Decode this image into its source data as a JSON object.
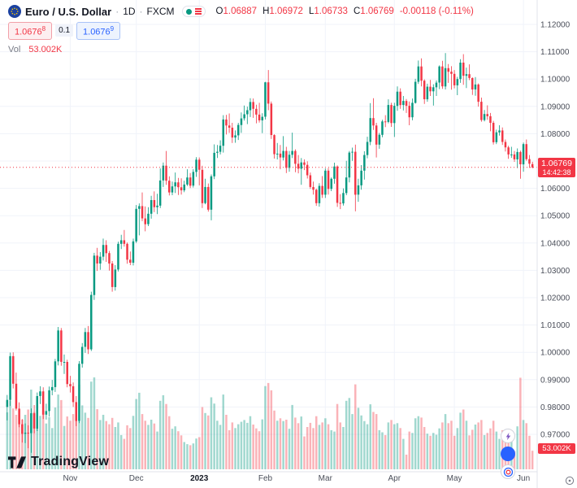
{
  "header": {
    "symbol": "Euro / U.S. Dollar",
    "dot": "·",
    "interval": "1D",
    "exchange": "FXCM",
    "o_label": "O",
    "o_value": "1.06887",
    "h_label": "H",
    "h_value": "1.06972",
    "l_label": "L",
    "l_value": "1.06733",
    "c_label": "C",
    "c_value": "1.06769",
    "change": "-0.00118 (-0.11%)",
    "sell_main": "1.0676",
    "sell_sup": "8",
    "spread": "0.1",
    "buy_main": "1.0676",
    "buy_sup": "9",
    "vol_label": "Vol",
    "vol_value": "53.002K"
  },
  "axis": {
    "price_tag_value": "1.06769",
    "price_tag_countdown": "14:42:38",
    "volume_tag": "53.002K"
  },
  "watermark": {
    "text": "TradingView"
  },
  "chart_data": {
    "type": "candlestick",
    "title": "Euro / U.S. Dollar · 1D · FXCM",
    "symbol": "EUR/USD",
    "interval": "1D",
    "exchange": "FXCM",
    "legend_position": "top-left",
    "grid": true,
    "y_axis": {
      "top": 1.12,
      "bottom": 0.97
    },
    "y_ticks": [
      "1.12000",
      "1.11000",
      "1.10000",
      "1.09000",
      "1.08000",
      "1.07000",
      "1.06000",
      "1.05000",
      "1.04000",
      "1.03000",
      "1.02000",
      "1.01000",
      "1.00000",
      "0.99000",
      "0.98000",
      "0.97000"
    ],
    "x_labels": [
      {
        "label": "Nov",
        "index": 21
      },
      {
        "label": "Dec",
        "index": 43
      },
      {
        "label": "2023",
        "index": 64,
        "bold": true
      },
      {
        "label": "Feb",
        "index": 86
      },
      {
        "label": "Mar",
        "index": 106
      },
      {
        "label": "Apr",
        "index": 129
      },
      {
        "label": "May",
        "index": 149
      },
      {
        "label": "Jun",
        "index": 172
      }
    ],
    "colors": {
      "up": "#089981",
      "down": "#f23645",
      "vol_up": "rgba(8,153,129,0.38)",
      "vol_down": "rgba(242,54,69,0.38)",
      "grid": "#f0f3fa",
      "axis_text": "#4a4e59",
      "last_price": "#f23645",
      "buy": "#2962ff"
    },
    "last": {
      "open": 1.06887,
      "high": 1.06972,
      "low": 1.06733,
      "close": 1.06769,
      "change": -0.00118,
      "change_pct": -0.11,
      "volume_text": "53.002K",
      "countdown": "14:42:38"
    },
    "candles": [
      [
        0.98,
        0.9844,
        0.9751,
        0.9826,
        163
      ],
      [
        0.9826,
        0.9999,
        0.9804,
        0.9986,
        197
      ],
      [
        0.9986,
        1.0,
        0.9868,
        0.9885,
        174
      ],
      [
        0.9885,
        0.9926,
        0.9787,
        0.9794,
        156
      ],
      [
        0.9794,
        0.9817,
        0.9726,
        0.9737,
        168
      ],
      [
        0.9737,
        0.9756,
        0.967,
        0.9702,
        142
      ],
      [
        0.9702,
        0.974,
        0.9668,
        0.9706,
        156
      ],
      [
        0.9706,
        0.9733,
        0.9649,
        0.9704,
        171
      ],
      [
        0.9704,
        0.9795,
        0.9632,
        0.9777,
        228
      ],
      [
        0.9777,
        0.9807,
        0.9704,
        0.9721,
        164
      ],
      [
        0.9721,
        0.9853,
        0.9712,
        0.984,
        187
      ],
      [
        0.984,
        0.9876,
        0.9811,
        0.9857,
        153
      ],
      [
        0.9857,
        0.9872,
        0.9756,
        0.9772,
        169
      ],
      [
        0.9772,
        0.9812,
        0.9754,
        0.9785,
        131
      ],
      [
        0.9785,
        0.9875,
        0.9765,
        0.9861,
        149
      ],
      [
        0.9861,
        0.9899,
        0.9843,
        0.9873,
        118
      ],
      [
        0.9873,
        0.9976,
        0.9855,
        0.9967,
        177
      ],
      [
        0.9967,
        1.0093,
        0.9952,
        1.008,
        214
      ],
      [
        1.008,
        1.0089,
        0.9951,
        0.9965,
        198
      ],
      [
        0.9965,
        0.9992,
        0.9921,
        0.9965,
        124
      ],
      [
        0.9965,
        0.9973,
        0.9872,
        0.9884,
        151
      ],
      [
        0.9884,
        0.9914,
        0.9853,
        0.9876,
        139
      ],
      [
        0.9876,
        0.989,
        0.98,
        0.9818,
        158
      ],
      [
        0.9818,
        0.984,
        0.973,
        0.9749,
        176
      ],
      [
        0.9749,
        0.9968,
        0.9741,
        0.9958,
        242
      ],
      [
        0.9958,
        1.0034,
        0.9944,
        1.002,
        183
      ],
      [
        1.002,
        1.0089,
        0.9998,
        1.0074,
        162
      ],
      [
        1.0074,
        1.0096,
        0.9994,
        1.0011,
        147
      ],
      [
        1.0011,
        1.0222,
        1.0005,
        1.021,
        251
      ],
      [
        1.021,
        1.0364,
        1.0192,
        1.0354,
        263
      ],
      [
        1.0354,
        1.0382,
        1.0298,
        1.0325,
        172
      ],
      [
        1.0325,
        1.0367,
        1.0302,
        1.035,
        141
      ],
      [
        1.035,
        1.0416,
        1.0336,
        1.0393,
        156
      ],
      [
        1.0393,
        1.041,
        1.0331,
        1.0363,
        138
      ],
      [
        1.0363,
        1.0371,
        1.0299,
        1.0325,
        129
      ],
      [
        1.0325,
        1.0334,
        1.0222,
        1.0239,
        147
      ],
      [
        1.0239,
        1.0319,
        1.0226,
        1.0303,
        121
      ],
      [
        1.0303,
        1.0405,
        1.0296,
        1.0397,
        134
      ],
      [
        1.0397,
        1.043,
        1.0378,
        1.041,
        98
      ],
      [
        1.041,
        1.0448,
        1.0387,
        1.0397,
        87
      ],
      [
        1.0397,
        1.0402,
        1.0324,
        1.0339,
        126
      ],
      [
        1.0339,
        1.0369,
        1.0319,
        1.0328,
        118
      ],
      [
        1.0328,
        1.0416,
        1.0318,
        1.0406,
        153
      ],
      [
        1.0406,
        1.0539,
        1.04,
        1.0525,
        201
      ],
      [
        1.0525,
        1.0545,
        1.0428,
        1.0535,
        219
      ],
      [
        1.0535,
        1.0585,
        1.048,
        1.049,
        158
      ],
      [
        1.049,
        1.0534,
        1.0443,
        1.0469,
        139
      ],
      [
        1.0469,
        1.0531,
        1.0462,
        1.0507,
        127
      ],
      [
        1.0507,
        1.0573,
        1.0489,
        1.0557,
        142
      ],
      [
        1.0557,
        1.0589,
        1.0513,
        1.0531,
        131
      ],
      [
        1.0531,
        1.058,
        1.0506,
        1.0537,
        108
      ],
      [
        1.0537,
        1.0673,
        1.0528,
        1.0629,
        196
      ],
      [
        1.0629,
        1.0695,
        1.0605,
        1.0683,
        212
      ],
      [
        1.0683,
        1.0737,
        1.0613,
        1.0628,
        187
      ],
      [
        1.0628,
        1.0644,
        1.0574,
        1.0585,
        152
      ],
      [
        1.0585,
        1.0625,
        1.0575,
        1.0607,
        116
      ],
      [
        1.0607,
        1.0658,
        1.0583,
        1.0622,
        123
      ],
      [
        1.0622,
        1.0638,
        1.0576,
        1.0604,
        109
      ],
      [
        1.0604,
        1.0637,
        1.0577,
        1.0593,
        97
      ],
      [
        1.0593,
        1.0628,
        1.0586,
        1.0614,
        78
      ],
      [
        1.0614,
        1.067,
        1.0609,
        1.064,
        72
      ],
      [
        1.064,
        1.0656,
        1.0601,
        1.061,
        69
      ],
      [
        1.061,
        1.067,
        1.0603,
        1.066,
        74
      ],
      [
        1.066,
        1.0714,
        1.0642,
        1.0705,
        88
      ],
      [
        1.0705,
        1.0713,
        1.0611,
        1.0668,
        92
      ],
      [
        1.0668,
        1.0683,
        1.0528,
        1.0546,
        178
      ],
      [
        1.0546,
        1.0635,
        1.0542,
        1.0605,
        161
      ],
      [
        1.0605,
        1.0618,
        1.0515,
        1.0522,
        154
      ],
      [
        1.0522,
        1.0651,
        1.0483,
        1.0644,
        206
      ],
      [
        1.0644,
        1.0761,
        1.0634,
        1.073,
        188
      ],
      [
        1.073,
        1.0759,
        1.0711,
        1.0734,
        139
      ],
      [
        1.0734,
        1.0776,
        1.0724,
        1.0756,
        127
      ],
      [
        1.0756,
        1.0868,
        1.0731,
        1.0852,
        214
      ],
      [
        1.0852,
        1.0869,
        1.0797,
        1.083,
        156
      ],
      [
        1.083,
        1.0874,
        1.0803,
        1.0822,
        112
      ],
      [
        1.0822,
        1.084,
        1.0766,
        1.0786,
        134
      ],
      [
        1.0786,
        1.0812,
        1.0767,
        1.0794,
        118
      ],
      [
        1.0794,
        1.084,
        1.0777,
        1.0832,
        129
      ],
      [
        1.0832,
        1.0878,
        1.0803,
        1.0856,
        136
      ],
      [
        1.0856,
        1.0903,
        1.0848,
        1.0871,
        141
      ],
      [
        1.0871,
        1.0899,
        1.0835,
        1.0886,
        133
      ],
      [
        1.0886,
        1.093,
        1.0861,
        1.0916,
        152
      ],
      [
        1.0916,
        1.0929,
        1.0858,
        1.0891,
        128
      ],
      [
        1.0891,
        1.0906,
        1.0838,
        1.087,
        117
      ],
      [
        1.087,
        1.0913,
        1.0841,
        1.0849,
        109
      ],
      [
        1.0849,
        1.0875,
        1.0802,
        1.0862,
        143
      ],
      [
        1.0862,
        1.099,
        1.0852,
        1.0988,
        238
      ],
      [
        1.0988,
        1.1033,
        1.0886,
        1.091,
        247
      ],
      [
        1.091,
        1.0918,
        1.0781,
        1.0795,
        226
      ],
      [
        1.0795,
        1.0798,
        1.0709,
        1.0725,
        168
      ],
      [
        1.0725,
        1.0766,
        1.0706,
        1.0727,
        139
      ],
      [
        1.0727,
        1.0759,
        1.067,
        1.0713,
        146
      ],
      [
        1.0713,
        1.0791,
        1.0702,
        1.0737,
        138
      ],
      [
        1.0737,
        1.0752,
        1.0656,
        1.0675,
        142
      ],
      [
        1.0675,
        1.0737,
        1.0661,
        1.0723,
        116
      ],
      [
        1.0723,
        1.0804,
        1.0711,
        1.0737,
        184
      ],
      [
        1.0737,
        1.0743,
        1.0659,
        1.069,
        148
      ],
      [
        1.069,
        1.0722,
        1.0655,
        1.0672,
        132
      ],
      [
        1.0672,
        1.0711,
        1.0613,
        1.0695,
        151
      ],
      [
        1.0695,
        1.0706,
        1.0667,
        1.0686,
        94
      ],
      [
        1.0686,
        1.0699,
        1.0636,
        1.0648,
        121
      ],
      [
        1.0648,
        1.0658,
        1.0598,
        1.0605,
        133
      ],
      [
        1.0605,
        1.0625,
        1.0577,
        1.0595,
        118
      ],
      [
        1.0595,
        1.0599,
        1.0536,
        1.0546,
        152
      ],
      [
        1.0546,
        1.0619,
        1.0533,
        1.0609,
        127
      ],
      [
        1.0609,
        1.0645,
        1.0565,
        1.0577,
        134
      ],
      [
        1.0577,
        1.0673,
        1.0565,
        1.0665,
        146
      ],
      [
        1.0665,
        1.0674,
        1.0577,
        1.0598,
        129
      ],
      [
        1.0598,
        1.064,
        1.059,
        1.0635,
        112
      ],
      [
        1.0635,
        1.0694,
        1.0617,
        1.068,
        108
      ],
      [
        1.068,
        1.0684,
        1.0532,
        1.0547,
        187
      ],
      [
        1.0547,
        1.0579,
        1.0524,
        1.0545,
        134
      ],
      [
        1.0545,
        1.06,
        1.0537,
        1.0583,
        121
      ],
      [
        1.0583,
        1.0701,
        1.0575,
        1.064,
        196
      ],
      [
        1.064,
        1.0737,
        1.0622,
        1.0731,
        204
      ],
      [
        1.0731,
        1.0749,
        1.0701,
        1.0734,
        158
      ],
      [
        1.0734,
        1.076,
        1.0516,
        1.0577,
        243
      ],
      [
        1.0577,
        1.0635,
        1.0551,
        1.0611,
        176
      ],
      [
        1.0611,
        1.0685,
        1.0595,
        1.0665,
        154
      ],
      [
        1.0665,
        1.0736,
        1.0632,
        1.0722,
        138
      ],
      [
        1.0722,
        1.0789,
        1.071,
        1.077,
        129
      ],
      [
        1.077,
        1.0912,
        1.0758,
        1.0857,
        186
      ],
      [
        1.0857,
        1.093,
        1.0814,
        1.083,
        164
      ],
      [
        1.083,
        1.084,
        1.0713,
        1.076,
        158
      ],
      [
        1.076,
        1.0803,
        1.0745,
        1.0796,
        112
      ],
      [
        1.0796,
        1.0851,
        1.0787,
        1.0845,
        106
      ],
      [
        1.0845,
        1.0868,
        1.0824,
        1.0843,
        98
      ],
      [
        1.0843,
        1.0926,
        1.0838,
        1.0905,
        134
      ],
      [
        1.0905,
        1.0913,
        1.0825,
        1.0839,
        141
      ],
      [
        1.0839,
        1.0913,
        1.0788,
        1.0902,
        129
      ],
      [
        1.0902,
        1.0973,
        1.0884,
        1.0954,
        132
      ],
      [
        1.0954,
        1.0966,
        1.0891,
        1.0905,
        118
      ],
      [
        1.0905,
        1.0938,
        1.0885,
        1.092,
        87
      ],
      [
        1.092,
        1.0927,
        1.0876,
        1.0902,
        42
      ],
      [
        1.0902,
        1.0918,
        1.0831,
        1.086,
        108
      ],
      [
        1.086,
        1.0929,
        1.0849,
        1.0913,
        104
      ],
      [
        1.0913,
        1.1001,
        1.091,
        1.099,
        146
      ],
      [
        1.099,
        1.1068,
        1.0982,
        1.1046,
        152
      ],
      [
        1.1046,
        1.1076,
        1.0973,
        1.0994,
        148
      ],
      [
        1.0994,
        1.0999,
        1.0909,
        1.0926,
        121
      ],
      [
        1.0926,
        1.0983,
        1.0917,
        1.0972,
        102
      ],
      [
        1.0972,
        1.0997,
        1.0938,
        1.0955,
        96
      ],
      [
        1.0955,
        1.0981,
        1.0903,
        1.097,
        104
      ],
      [
        1.097,
        1.0995,
        1.0938,
        1.0987,
        99
      ],
      [
        1.0987,
        1.105,
        1.0963,
        1.1046,
        117
      ],
      [
        1.1046,
        1.1067,
        1.0964,
        1.0973,
        134
      ],
      [
        1.0973,
        1.1095,
        1.0962,
        1.104,
        158
      ],
      [
        1.104,
        1.1055,
        1.0986,
        1.1027,
        132
      ],
      [
        1.1027,
        1.1047,
        1.0961,
        1.1019,
        139
      ],
      [
        1.1019,
        1.1033,
        1.0966,
        1.0977,
        96
      ],
      [
        1.0977,
        1.1008,
        1.0941,
        1.1,
        118
      ],
      [
        1.1,
        1.1073,
        1.0986,
        1.106,
        162
      ],
      [
        1.106,
        1.1091,
        1.0979,
        1.1012,
        171
      ],
      [
        1.1012,
        1.1042,
        1.0967,
        1.1018,
        139
      ],
      [
        1.1018,
        1.1054,
        1.0996,
        1.1004,
        97
      ],
      [
        1.1004,
        1.1006,
        1.0942,
        1.0962,
        113
      ],
      [
        1.0962,
        1.1007,
        1.0939,
        1.098,
        128
      ],
      [
        1.098,
        1.0984,
        1.0899,
        1.0917,
        134
      ],
      [
        1.0917,
        1.0932,
        1.0844,
        1.085,
        141
      ],
      [
        1.085,
        1.0887,
        1.0845,
        1.0872,
        98
      ],
      [
        1.0872,
        1.0904,
        1.0851,
        1.0864,
        104
      ],
      [
        1.0864,
        1.0876,
        1.0809,
        1.084,
        117
      ],
      [
        1.084,
        1.0847,
        1.076,
        1.0769,
        139
      ],
      [
        1.0769,
        1.0815,
        1.0762,
        1.0805,
        108
      ],
      [
        1.0805,
        1.0831,
        1.0793,
        1.0812,
        87
      ],
      [
        1.0812,
        1.0823,
        1.0759,
        1.077,
        112
      ],
      [
        1.077,
        1.0779,
        1.0735,
        1.075,
        109
      ],
      [
        1.075,
        1.0756,
        1.0708,
        1.0724,
        116
      ],
      [
        1.0724,
        1.0752,
        1.0712,
        1.0724,
        84
      ],
      [
        1.0724,
        1.0737,
        1.0697,
        1.0706,
        52
      ],
      [
        1.0706,
        1.0746,
        1.0674,
        1.0733,
        123
      ],
      [
        1.0733,
        1.0738,
        1.0635,
        1.0688,
        262
      ],
      [
        1.0688,
        1.0768,
        1.0661,
        1.0762,
        141
      ],
      [
        1.0762,
        1.0779,
        1.0701,
        1.0707,
        132
      ],
      [
        1.0707,
        1.0722,
        1.0675,
        1.069,
        96
      ],
      [
        1.06887,
        1.06972,
        1.06733,
        1.06769,
        53
      ]
    ]
  }
}
